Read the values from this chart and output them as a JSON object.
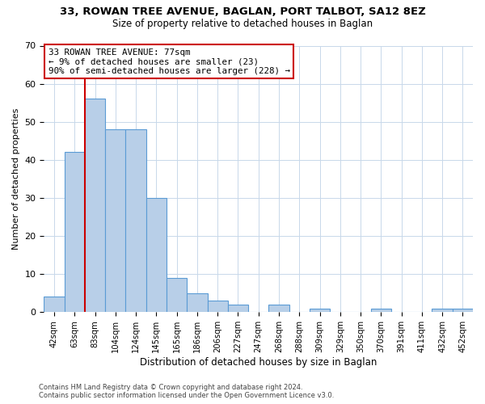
{
  "title": "33, ROWAN TREE AVENUE, BAGLAN, PORT TALBOT, SA12 8EZ",
  "subtitle": "Size of property relative to detached houses in Baglan",
  "xlabel": "Distribution of detached houses by size in Baglan",
  "ylabel": "Number of detached properties",
  "bar_labels": [
    "42sqm",
    "63sqm",
    "83sqm",
    "104sqm",
    "124sqm",
    "145sqm",
    "165sqm",
    "186sqm",
    "206sqm",
    "227sqm",
    "247sqm",
    "268sqm",
    "288sqm",
    "309sqm",
    "329sqm",
    "350sqm",
    "370sqm",
    "391sqm",
    "411sqm",
    "432sqm",
    "452sqm"
  ],
  "bar_values": [
    4,
    42,
    56,
    48,
    48,
    30,
    9,
    5,
    3,
    2,
    0,
    2,
    0,
    1,
    0,
    0,
    1,
    0,
    0,
    1,
    1
  ],
  "bar_color": "#b8cfe8",
  "bar_edge_color": "#5b9bd5",
  "vline_x": 1.5,
  "vline_color": "#cc0000",
  "annotation_title": "33 ROWAN TREE AVENUE: 77sqm",
  "annotation_line1": "← 9% of detached houses are smaller (23)",
  "annotation_line2": "90% of semi-detached houses are larger (228) →",
  "annotation_box_color": "#ffffff",
  "annotation_box_edge": "#cc0000",
  "ylim": [
    0,
    70
  ],
  "yticks": [
    0,
    10,
    20,
    30,
    40,
    50,
    60,
    70
  ],
  "footer1": "Contains HM Land Registry data © Crown copyright and database right 2024.",
  "footer2": "Contains public sector information licensed under the Open Government Licence v3.0.",
  "bg_color": "#ffffff",
  "grid_color": "#c8d8ea"
}
